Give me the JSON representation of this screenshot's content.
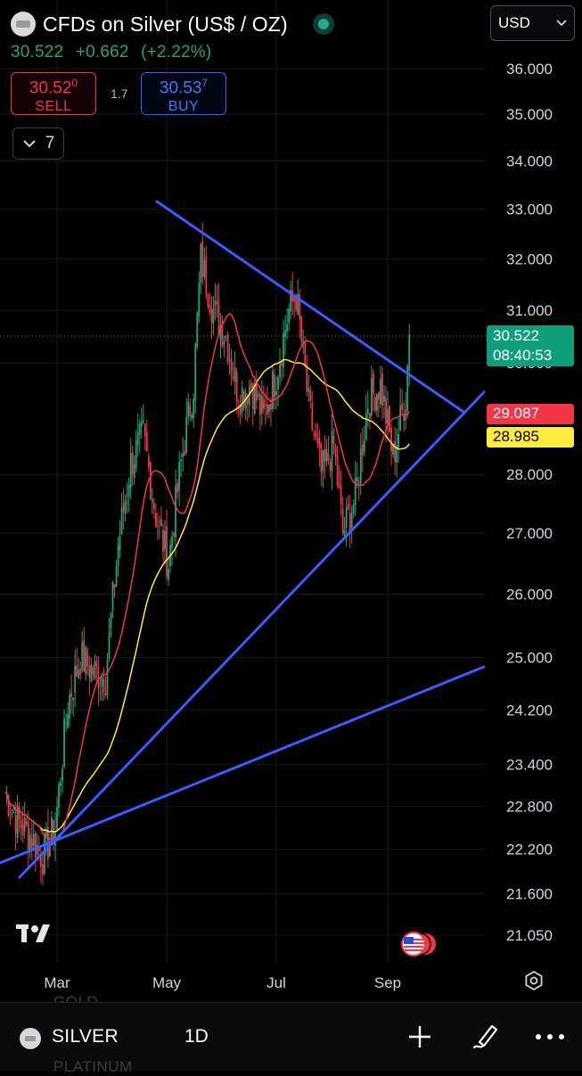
{
  "header": {
    "title": "CFDs on Silver (US$ / OZ)",
    "last": "30.522",
    "change": "+0.662",
    "change_pct": "(+2.22%)",
    "sell": {
      "price": "30.52",
      "price_sup": "0",
      "label": "SELL"
    },
    "spread": "1.7",
    "buy": {
      "price": "30.53",
      "price_sup": "7",
      "label": "BUY"
    },
    "indicators_count": "7",
    "currency": "USD"
  },
  "price_tags": {
    "last_price": "30.522",
    "countdown": "08:40:53",
    "ma_red": "29.087",
    "ma_yellow": "28.985"
  },
  "bottom_bar": {
    "symbol": "SILVER",
    "timeframe": "1D",
    "ghost_above": "GOLD",
    "ghost_below": "PLATINUM",
    "icons": [
      "plus-icon",
      "draw-icon",
      "more-icon"
    ]
  },
  "colors": {
    "up": "#26a17b",
    "down": "#f23645",
    "ma_red": "#f23645",
    "ma_yellow": "#ffeb3b",
    "trendline": "#3a5cff",
    "accent": "#2962ff"
  },
  "chart_data": {
    "type": "candlestick",
    "timeframe": "1D",
    "x_labels": [
      "Mar",
      "May",
      "Jul",
      "Sep"
    ],
    "y_ticks": [
      "36.000",
      "35.000",
      "34.000",
      "33.000",
      "32.000",
      "31.000",
      "30.000",
      "28.000",
      "27.000",
      "26.000",
      "25.000",
      "24.200",
      "23.400",
      "22.800",
      "22.200",
      "21.600",
      "21.050"
    ],
    "y_scale": "log",
    "y_range": [
      20.8,
      36.5
    ],
    "series": [
      {
        "kind": "candles",
        "close_path": [
          [
            "Feb 01",
            23.0
          ],
          [
            "Feb 08",
            22.6
          ],
          [
            "Feb 15",
            22.4
          ],
          [
            "Feb 22",
            22.1
          ],
          [
            "Feb 29",
            22.5
          ],
          [
            "Mar 07",
            24.3
          ],
          [
            "Mar 14",
            25.0
          ],
          [
            "Mar 21",
            24.8
          ],
          [
            "Mar 28",
            24.7
          ],
          [
            "Apr 04",
            26.8
          ],
          [
            "Apr 11",
            28.2
          ],
          [
            "Apr 18",
            28.7
          ],
          [
            "Apr 25",
            27.3
          ],
          [
            "May 02",
            26.5
          ],
          [
            "May 09",
            28.2
          ],
          [
            "May 16",
            29.6
          ],
          [
            "May 20",
            32.0
          ],
          [
            "May 27",
            31.0
          ],
          [
            "Jun 03",
            30.5
          ],
          [
            "Jun 10",
            29.4
          ],
          [
            "Jun 17",
            29.6
          ],
          [
            "Jun 24",
            29.0
          ],
          [
            "Jul 01",
            29.8
          ],
          [
            "Jul 08",
            31.0
          ],
          [
            "Jul 12",
            31.3
          ],
          [
            "Jul 19",
            29.2
          ],
          [
            "Jul 26",
            28.0
          ],
          [
            "Aug 02",
            28.5
          ],
          [
            "Aug 07",
            27.0
          ],
          [
            "Aug 14",
            27.6
          ],
          [
            "Aug 21",
            29.3
          ],
          [
            "Aug 28",
            29.6
          ],
          [
            "Sep 04",
            28.3
          ],
          [
            "Sep 11",
            29.4
          ],
          [
            "Sep 13",
            30.522
          ]
        ]
      },
      {
        "kind": "ma",
        "color": "red",
        "last": 29.087
      },
      {
        "kind": "ma",
        "color": "yellow",
        "last": 28.985
      }
    ]
  }
}
